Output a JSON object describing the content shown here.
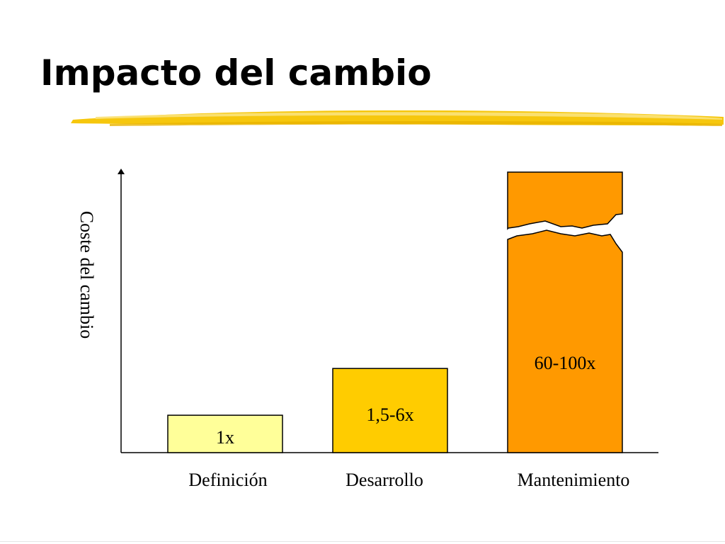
{
  "slide": {
    "title": "Impacto del cambio"
  },
  "chart_data": {
    "type": "bar",
    "title": "",
    "xlabel": "",
    "ylabel": "Coste del cambio",
    "categories": [
      "Definición",
      "Desarrollo",
      "Mantenimiento"
    ],
    "data_labels": [
      "1x",
      "1,5-6x",
      "60-100x"
    ],
    "values": [
      1,
      2.25,
      7.5
    ],
    "ylim": [
      0,
      7.5
    ],
    "axis_break_on_last_bar": true,
    "grid": false,
    "legend": "none",
    "colors": [
      "#ffff99",
      "#ffcc00",
      "#ff9900"
    ],
    "stroke_color": "#000000",
    "underline_color": "#f5c400"
  }
}
